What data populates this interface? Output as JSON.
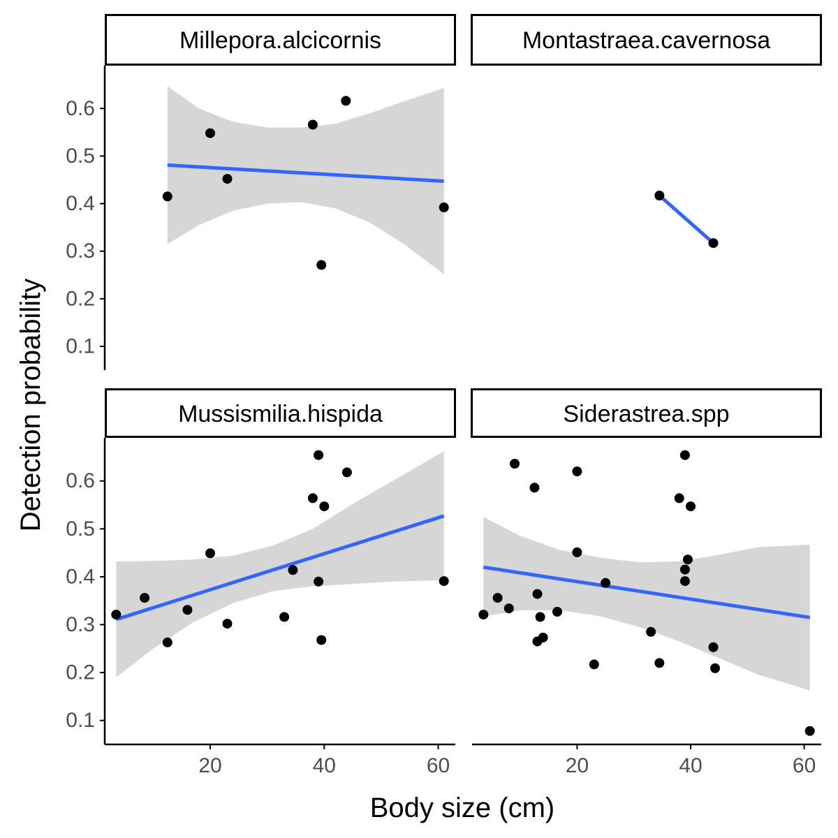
{
  "chart_data": {
    "type": "scatter",
    "layout": "faceted 2x2 (facet_wrap)",
    "xlabel": "Body size (cm)",
    "ylabel": "Detection probability",
    "xlim": [
      1.5,
      63
    ],
    "ylim": [
      0.05,
      0.69
    ],
    "xticks": [
      20,
      40,
      60
    ],
    "xtick_labels": [
      "20",
      "40",
      "60"
    ],
    "yticks": [
      0.1,
      0.2,
      0.3,
      0.4,
      0.5,
      0.6
    ],
    "ytick_labels": [
      "0.1",
      "0.2",
      "0.3",
      "0.4",
      "0.5",
      "0.6"
    ],
    "smooth_method": "lm with 95% confidence band",
    "fit_color": "#3366ff",
    "band_color": "#d6d6d6",
    "point_color": "#000000",
    "panels": [
      {
        "title": "Millepora.alcicornis",
        "points": [
          {
            "x": 12.5,
            "y": 0.415
          },
          {
            "x": 20,
            "y": 0.548
          },
          {
            "x": 23,
            "y": 0.452
          },
          {
            "x": 38,
            "y": 0.566
          },
          {
            "x": 39.5,
            "y": 0.271
          },
          {
            "x": 43.8,
            "y": 0.616
          },
          {
            "x": 61,
            "y": 0.392
          }
        ],
        "fit": {
          "x": [
            12.5,
            61
          ],
          "y": [
            0.481,
            0.447
          ]
        },
        "band": {
          "x": [
            12.5,
            18,
            24,
            30,
            36,
            42,
            48,
            54,
            61
          ],
          "lower": [
            0.315,
            0.355,
            0.385,
            0.4,
            0.403,
            0.39,
            0.36,
            0.315,
            0.252
          ],
          "upper": [
            0.647,
            0.6,
            0.572,
            0.56,
            0.56,
            0.568,
            0.59,
            0.615,
            0.643
          ]
        }
      },
      {
        "title": "Montastraea.cavernosa",
        "points": [
          {
            "x": 34.5,
            "y": 0.417
          },
          {
            "x": 44,
            "y": 0.317
          }
        ],
        "fit": {
          "x": [
            34.5,
            44
          ],
          "y": [
            0.417,
            0.317
          ]
        },
        "band": null
      },
      {
        "title": "Mussismilia.hispida",
        "points": [
          {
            "x": 3.5,
            "y": 0.321
          },
          {
            "x": 8.5,
            "y": 0.356
          },
          {
            "x": 12.5,
            "y": 0.263
          },
          {
            "x": 16,
            "y": 0.331
          },
          {
            "x": 20,
            "y": 0.449
          },
          {
            "x": 23,
            "y": 0.302
          },
          {
            "x": 33,
            "y": 0.316
          },
          {
            "x": 34.5,
            "y": 0.414
          },
          {
            "x": 38,
            "y": 0.564
          },
          {
            "x": 39,
            "y": 0.654
          },
          {
            "x": 39,
            "y": 0.39
          },
          {
            "x": 39.5,
            "y": 0.268
          },
          {
            "x": 40,
            "y": 0.547
          },
          {
            "x": 44,
            "y": 0.618
          },
          {
            "x": 61,
            "y": 0.391
          }
        ],
        "fit": {
          "x": [
            3.5,
            61
          ],
          "y": [
            0.311,
            0.527
          ]
        },
        "band": {
          "x": [
            3.5,
            10,
            17,
            24,
            31,
            38,
            45,
            52,
            61
          ],
          "lower": [
            0.19,
            0.25,
            0.305,
            0.345,
            0.37,
            0.38,
            0.385,
            0.39,
            0.393
          ],
          "upper": [
            0.432,
            0.433,
            0.436,
            0.444,
            0.465,
            0.5,
            0.552,
            0.6,
            0.662
          ]
        }
      },
      {
        "title": "Siderastrea.spp",
        "points": [
          {
            "x": 3.5,
            "y": 0.321
          },
          {
            "x": 6,
            "y": 0.356
          },
          {
            "x": 8,
            "y": 0.334
          },
          {
            "x": 9,
            "y": 0.636
          },
          {
            "x": 12.5,
            "y": 0.586
          },
          {
            "x": 13,
            "y": 0.364
          },
          {
            "x": 13,
            "y": 0.265
          },
          {
            "x": 13.5,
            "y": 0.316
          },
          {
            "x": 14,
            "y": 0.273
          },
          {
            "x": 16.5,
            "y": 0.327
          },
          {
            "x": 20,
            "y": 0.62
          },
          {
            "x": 20,
            "y": 0.451
          },
          {
            "x": 23,
            "y": 0.217
          },
          {
            "x": 25,
            "y": 0.387
          },
          {
            "x": 33,
            "y": 0.285
          },
          {
            "x": 34.5,
            "y": 0.22
          },
          {
            "x": 38,
            "y": 0.564
          },
          {
            "x": 39,
            "y": 0.654
          },
          {
            "x": 39,
            "y": 0.415
          },
          {
            "x": 39,
            "y": 0.391
          },
          {
            "x": 39.5,
            "y": 0.436
          },
          {
            "x": 40,
            "y": 0.547
          },
          {
            "x": 44,
            "y": 0.253
          },
          {
            "x": 44.3,
            "y": 0.209
          },
          {
            "x": 61,
            "y": 0.078
          }
        ],
        "fit": {
          "x": [
            3.5,
            61
          ],
          "y": [
            0.42,
            0.315
          ]
        },
        "band": {
          "x": [
            3.5,
            10,
            17,
            24,
            31,
            38,
            45,
            52,
            61
          ],
          "lower": [
            0.317,
            0.33,
            0.33,
            0.318,
            0.295,
            0.265,
            0.23,
            0.195,
            0.163
          ],
          "upper": [
            0.525,
            0.485,
            0.456,
            0.44,
            0.43,
            0.432,
            0.446,
            0.462,
            0.467
          ]
        }
      }
    ]
  }
}
